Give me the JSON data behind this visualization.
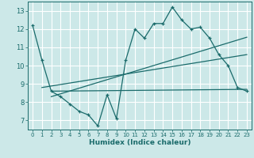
{
  "title": "",
  "xlabel": "Humidex (Indice chaleur)",
  "bg_color": "#cce8e8",
  "line_color": "#1a6b6b",
  "grid_color": "#ffffff",
  "xlim": [
    -0.5,
    23.5
  ],
  "ylim": [
    6.5,
    13.5
  ],
  "xticks": [
    0,
    1,
    2,
    3,
    4,
    5,
    6,
    7,
    8,
    9,
    10,
    11,
    12,
    13,
    14,
    15,
    16,
    17,
    18,
    19,
    20,
    21,
    22,
    23
  ],
  "yticks": [
    7,
    8,
    9,
    10,
    11,
    12,
    13
  ],
  "line1_x": [
    0,
    1,
    2,
    3,
    4,
    5,
    6,
    7,
    8,
    9,
    10,
    11,
    12,
    13,
    14,
    15,
    16,
    17,
    18,
    19,
    20,
    21,
    22,
    23
  ],
  "line1_y": [
    12.2,
    10.3,
    8.6,
    8.3,
    7.9,
    7.5,
    7.3,
    6.7,
    8.4,
    7.1,
    10.3,
    12.0,
    11.5,
    12.3,
    12.3,
    13.2,
    12.5,
    12.0,
    12.1,
    11.5,
    10.6,
    10.0,
    8.8,
    8.6
  ],
  "line2_x": [
    2,
    23
  ],
  "line2_y": [
    8.6,
    8.7
  ],
  "line3_x": [
    1,
    23
  ],
  "line3_y": [
    8.8,
    10.6
  ],
  "line4_x": [
    2,
    23
  ],
  "line4_y": [
    8.3,
    11.55
  ]
}
